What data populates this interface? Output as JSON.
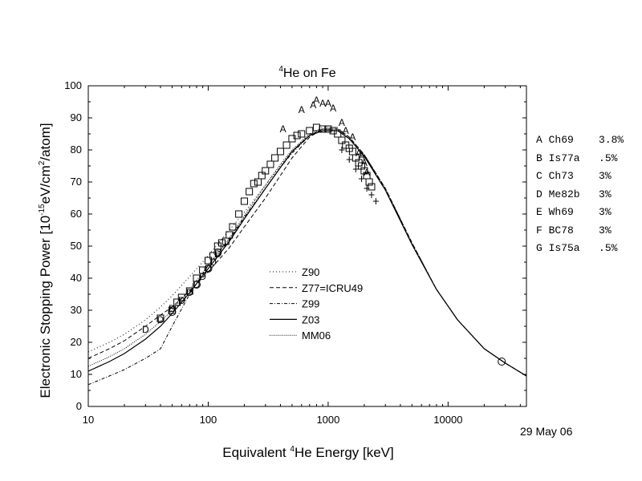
{
  "chart_data": {
    "type": "line",
    "title": {
      "sup": "4",
      "text": "He on Fe"
    },
    "ylabel": {
      "pre": "Electronic Stopping Power [10",
      "sup1": "-15",
      "mid": "eV/cm",
      "sup2": "2",
      "post": "/atom]"
    },
    "xlabel": {
      "pre": "Equivalent ",
      "sup": "4",
      "post": "He Energy [keV]"
    },
    "xscale": "log",
    "xlim": [
      10,
      45000
    ],
    "ylim": [
      0,
      100
    ],
    "x_ticks": [
      10,
      100,
      1000,
      10000
    ],
    "x_tick_labels": [
      "10",
      "100",
      "1000",
      "10000"
    ],
    "y_ticks": [
      0,
      10,
      20,
      30,
      40,
      50,
      60,
      70,
      80,
      90,
      100
    ],
    "y_tick_labels": [
      "0",
      "10",
      "20",
      "30",
      "40",
      "50",
      "60",
      "70",
      "80",
      "90",
      "100"
    ],
    "grid": false,
    "legend_position": "center-left",
    "series": [
      {
        "name": "Z90",
        "style": "dot",
        "x": [
          10,
          15,
          20,
          30,
          40,
          50,
          70,
          100,
          150,
          200,
          300,
          400,
          500,
          700,
          900,
          1200,
          1500,
          2000,
          3000,
          5000,
          8000,
          12000,
          20000,
          30000,
          45000
        ],
        "y": [
          17,
          20,
          22.5,
          27,
          31,
          34.5,
          40.5,
          47,
          55,
          60.5,
          69,
          75,
          79.5,
          85,
          87,
          87,
          84,
          78.5,
          68,
          51,
          36.5,
          27,
          18,
          13.5,
          9.5
        ]
      },
      {
        "name": "Z77=ICRU49",
        "style": "dash",
        "x": [
          10,
          15,
          20,
          30,
          40,
          50,
          70,
          100,
          150,
          200,
          300,
          400,
          500,
          700,
          900,
          1200,
          1500,
          2000,
          3000,
          5000,
          8000,
          12000,
          20000,
          30000,
          45000
        ],
        "y": [
          15,
          18,
          20.5,
          25,
          28.5,
          31,
          36,
          42,
          49.5,
          56,
          65,
          72,
          77.5,
          84,
          86.5,
          86.5,
          84,
          78.5,
          68,
          51,
          36.5,
          27,
          18,
          13.5,
          9.5
        ]
      },
      {
        "name": "Z99",
        "style": "dashdot",
        "x": [
          10,
          15,
          20,
          30,
          40,
          50,
          70,
          100,
          150,
          200,
          300,
          400,
          500,
          700,
          900,
          1200,
          1500,
          2000,
          3000,
          5000,
          8000,
          12000,
          20000,
          30000,
          45000
        ],
        "y": [
          6.8,
          9.5,
          11.5,
          15,
          18,
          25,
          35,
          44,
          52,
          59,
          68,
          74.5,
          79,
          84.5,
          86.5,
          86.5,
          84,
          78.5,
          68,
          51,
          36.5,
          27,
          18,
          13.5,
          9.5
        ]
      },
      {
        "name": "Z03",
        "style": "solid",
        "x": [
          10,
          15,
          20,
          30,
          40,
          50,
          70,
          100,
          150,
          200,
          300,
          400,
          500,
          700,
          900,
          1200,
          1500,
          2000,
          3000,
          5000,
          8000,
          12000,
          20000,
          30000,
          45000
        ],
        "y": [
          11,
          14,
          16.5,
          21,
          25,
          29,
          35.5,
          43,
          51.5,
          58.5,
          68,
          74.5,
          79.5,
          84.5,
          86,
          86,
          83.5,
          78,
          67.5,
          50.5,
          36.5,
          27,
          18,
          13.5,
          9.5
        ]
      },
      {
        "name": "MM06",
        "style": "finedot",
        "x": [
          10,
          15,
          20,
          30,
          40,
          50,
          70,
          100,
          150,
          200,
          300,
          400,
          500,
          700,
          900,
          1200,
          1500,
          2000,
          3000,
          5000,
          8000,
          12000,
          20000,
          30000,
          45000
        ],
        "y": [
          12.5,
          15.5,
          18,
          22.5,
          26.5,
          30,
          36.5,
          44,
          52.5,
          59.5,
          69,
          75.5,
          80,
          85,
          86.5,
          86,
          83.5,
          78,
          67.5,
          50.5,
          36.5,
          27,
          18,
          13.5,
          9.5
        ]
      }
    ],
    "markers": [
      {
        "symbol": "A",
        "points": [
          [
            420,
            86.5
          ],
          [
            600,
            92.5
          ],
          [
            750,
            94
          ],
          [
            800,
            95.5
          ],
          [
            900,
            94.5
          ],
          [
            1000,
            94.5
          ],
          [
            1100,
            93
          ],
          [
            1300,
            88.5
          ],
          [
            1400,
            86
          ],
          [
            1600,
            84
          ],
          [
            1800,
            79
          ],
          [
            1900,
            78
          ],
          [
            2000,
            76
          ],
          [
            2100,
            73
          ]
        ]
      },
      {
        "symbol": "square",
        "points": [
          [
            40,
            27.5
          ],
          [
            50,
            30
          ],
          [
            55,
            32.5
          ],
          [
            60,
            34
          ],
          [
            70,
            36
          ],
          [
            80,
            40
          ],
          [
            90,
            42.5
          ],
          [
            100,
            45.5
          ],
          [
            110,
            47
          ],
          [
            120,
            50
          ],
          [
            130,
            51
          ],
          [
            140,
            51.5
          ],
          [
            150,
            53.5
          ],
          [
            160,
            56
          ],
          [
            180,
            60
          ],
          [
            200,
            64
          ],
          [
            220,
            67
          ],
          [
            240,
            69.5
          ],
          [
            260,
            70
          ],
          [
            280,
            72
          ],
          [
            300,
            73.5
          ],
          [
            330,
            75.5
          ],
          [
            360,
            77.5
          ],
          [
            400,
            79.5
          ],
          [
            450,
            81.5
          ],
          [
            500,
            83.5
          ],
          [
            550,
            84.5
          ],
          [
            600,
            85
          ],
          [
            700,
            86
          ],
          [
            800,
            87
          ],
          [
            900,
            86.5
          ],
          [
            1000,
            86.5
          ],
          [
            1100,
            86
          ],
          [
            1200,
            85
          ],
          [
            1300,
            83
          ],
          [
            1400,
            81.5
          ],
          [
            1500,
            80.5
          ],
          [
            1600,
            79.5
          ],
          [
            1700,
            77.5
          ],
          [
            1800,
            76
          ],
          [
            1900,
            75
          ],
          [
            2000,
            73.5
          ],
          [
            2100,
            72
          ],
          [
            2200,
            70
          ],
          [
            2300,
            68.5
          ]
        ]
      },
      {
        "symbol": "D",
        "points": [
          [
            30,
            24
          ],
          [
            40,
            27
          ],
          [
            50,
            30.5
          ],
          [
            60,
            33
          ],
          [
            70,
            35.5
          ],
          [
            80,
            38
          ],
          [
            90,
            40.5
          ],
          [
            100,
            43
          ],
          [
            110,
            45
          ],
          [
            120,
            47.5
          ]
        ]
      },
      {
        "symbol": "circle",
        "points": [
          [
            50,
            29.5
          ],
          [
            80,
            38
          ],
          [
            100,
            43
          ],
          [
            120,
            48
          ],
          [
            28000,
            14
          ]
        ]
      },
      {
        "symbol": "plus",
        "points": [
          [
            1300,
            80
          ],
          [
            1500,
            77
          ],
          [
            1700,
            74
          ],
          [
            1900,
            71
          ],
          [
            2100,
            68
          ],
          [
            2300,
            66
          ],
          [
            2500,
            64
          ]
        ]
      }
    ],
    "references": [
      {
        "letter": "A",
        "code": "Ch69",
        "err": "3.8%"
      },
      {
        "letter": "B",
        "code": "Is77a",
        "err": ".5%"
      },
      {
        "letter": "C",
        "code": "Ch73",
        "err": "3%"
      },
      {
        "letter": "D",
        "code": "Me82b",
        "err": "3%"
      },
      {
        "letter": "E",
        "code": "Wh69",
        "err": "3%"
      },
      {
        "letter": "F",
        "code": "BC78",
        "err": "3%"
      },
      {
        "letter": "G",
        "code": "Is75a",
        "err": ".5%"
      }
    ],
    "date": "29 May 06"
  }
}
